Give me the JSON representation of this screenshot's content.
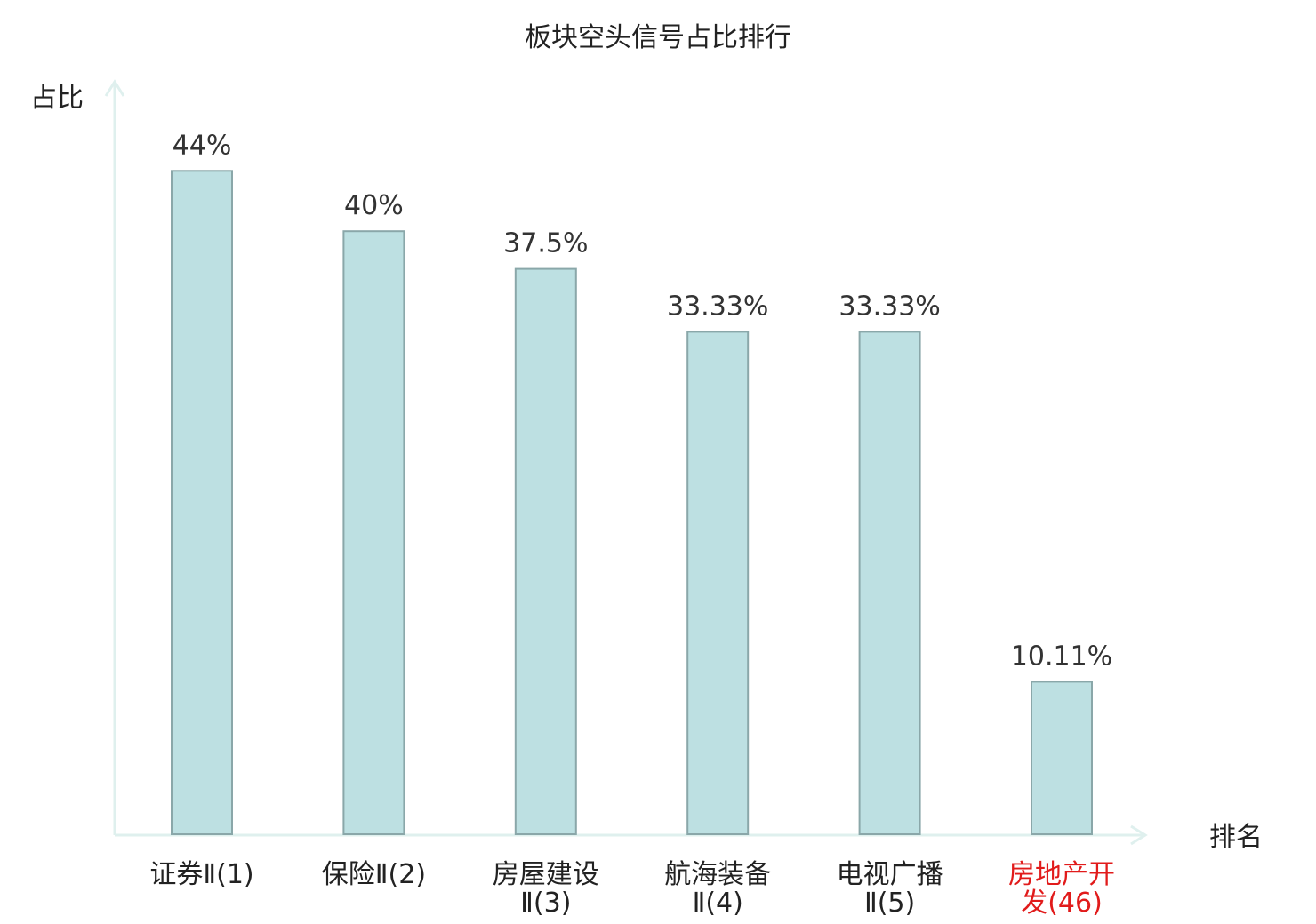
{
  "chart_data": {
    "type": "bar",
    "title": "板块空头信号占比排行",
    "xlabel": "排名",
    "ylabel": "占比",
    "ylim": [
      0,
      50
    ],
    "grid": false,
    "categories": [
      {
        "lines": [
          "证券Ⅱ(1)"
        ],
        "highlight": false
      },
      {
        "lines": [
          "保险Ⅱ(2)"
        ],
        "highlight": false
      },
      {
        "lines": [
          "房屋建设",
          "Ⅱ(3)"
        ],
        "highlight": false
      },
      {
        "lines": [
          "航海装备",
          "Ⅱ(4)"
        ],
        "highlight": false
      },
      {
        "lines": [
          "电视广播",
          "Ⅱ(5)"
        ],
        "highlight": false
      },
      {
        "lines": [
          "房地产开",
          "发(46)"
        ],
        "highlight": true
      }
    ],
    "values": [
      44,
      40,
      37.5,
      33.33,
      33.33,
      10.11
    ],
    "value_labels": [
      "44%",
      "40%",
      "37.5%",
      "33.33%",
      "33.33%",
      "10.11%"
    ],
    "colors": {
      "bar_fill": "#bde0e2",
      "bar_stroke": "#8aa7a9",
      "axis": "#dff0ee",
      "highlight_label": "#e11b1b"
    }
  }
}
